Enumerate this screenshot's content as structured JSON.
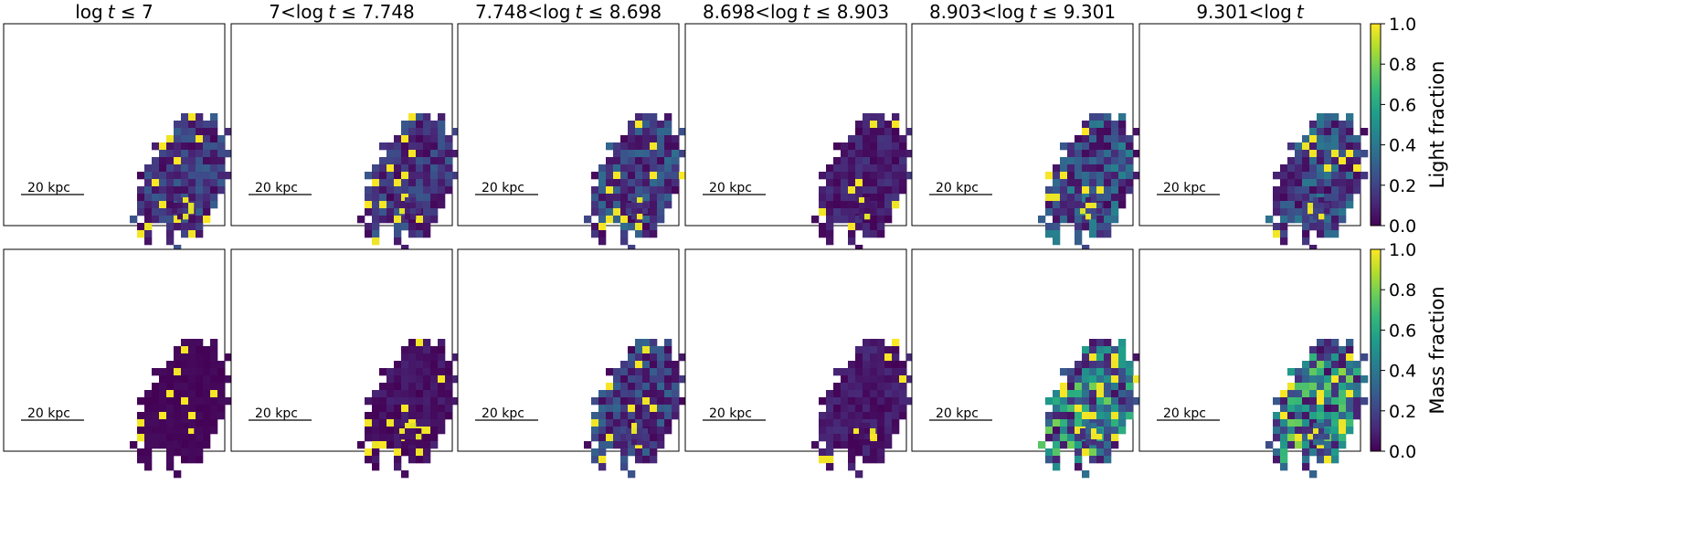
{
  "chart_data": {
    "type": "heatmap",
    "colormap": "viridis",
    "columns": [
      {
        "title_prefix": "log",
        "title_var": "t",
        "title_suffix": " ≤ 7"
      },
      {
        "title_prefix": "7<log",
        "title_var": "t",
        "title_suffix": " ≤ 7.748"
      },
      {
        "title_prefix": "7.748<log",
        "title_var": "t",
        "title_suffix": " ≤ 8.698"
      },
      {
        "title_prefix": "8.698<log",
        "title_var": "t",
        "title_suffix": " ≤ 8.903"
      },
      {
        "title_prefix": "8.903<log",
        "title_var": "t",
        "title_suffix": " ≤ 9.301"
      },
      {
        "title_prefix": "9.301<log",
        "title_var": "t",
        "title_suffix": ""
      }
    ],
    "rows": [
      {
        "colorbar_label": "Light fraction",
        "panel_mean": [
          0.18,
          0.18,
          0.22,
          0.1,
          0.27,
          0.25
        ]
      },
      {
        "colorbar_label": "Mass fraction",
        "panel_mean": [
          0.02,
          0.06,
          0.2,
          0.08,
          0.48,
          0.5
        ]
      }
    ],
    "scalebar_label": "20 kpc",
    "colorbar_ticks": [
      "0.0",
      "0.2",
      "0.4",
      "0.6",
      "0.8",
      "1.0"
    ],
    "colorbar_range": [
      0.0,
      1.0
    ]
  }
}
